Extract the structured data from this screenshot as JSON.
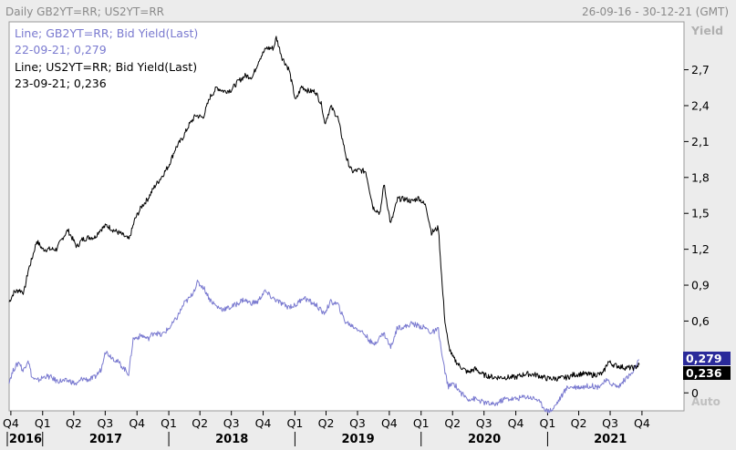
{
  "header": {
    "left_label": "Daily GB2YT=RR; US2YT=RR",
    "right_label": "26-09-16 - 30-12-21 (GMT)"
  },
  "legend": [
    {
      "line1": "Line; GB2YT=RR; Bid Yield(Last)",
      "line2": "22-09-21; 0,279",
      "color": "#7a7ad0"
    },
    {
      "line1": "Line; US2YT=RR; Bid Yield(Last)",
      "line2": "23-09-21; 0,236",
      "color": "#000000"
    }
  ],
  "axis_title": "Yield",
  "auto_label": "Auto",
  "last_value_tags": [
    {
      "label": "0,279",
      "bg": "#2a2a9a",
      "fg": "#ffffff"
    },
    {
      "label": "0,236",
      "bg": "#000000",
      "fg": "#ffffff"
    }
  ],
  "chart_data": {
    "type": "line",
    "title": "",
    "xlabel": "",
    "ylabel": "Yield",
    "ylim": [
      -0.15,
      3.1
    ],
    "xlim": [
      "2016-09-26",
      "2021-12-30"
    ],
    "y_ticks": [
      {
        "value": 0,
        "label": "0"
      },
      {
        "value": 0.6,
        "label": "0,6"
      },
      {
        "value": 0.9,
        "label": "0,9"
      },
      {
        "value": 1.2,
        "label": "1,2"
      },
      {
        "value": 1.5,
        "label": "1,5"
      },
      {
        "value": 1.8,
        "label": "1,8"
      },
      {
        "value": 2.1,
        "label": "2,1"
      },
      {
        "value": 2.4,
        "label": "2,4"
      },
      {
        "value": 2.7,
        "label": "2,7"
      }
    ],
    "quarter_ticks": [
      {
        "date": "2016-10-01",
        "label": "Q4"
      },
      {
        "date": "2017-01-01",
        "label": "Q1"
      },
      {
        "date": "2017-04-01",
        "label": "Q2"
      },
      {
        "date": "2017-07-01",
        "label": "Q3"
      },
      {
        "date": "2017-10-01",
        "label": "Q4"
      },
      {
        "date": "2018-01-01",
        "label": "Q1"
      },
      {
        "date": "2018-04-01",
        "label": "Q2"
      },
      {
        "date": "2018-07-01",
        "label": "Q3"
      },
      {
        "date": "2018-10-01",
        "label": "Q4"
      },
      {
        "date": "2019-01-01",
        "label": "Q1"
      },
      {
        "date": "2019-04-01",
        "label": "Q2"
      },
      {
        "date": "2019-07-01",
        "label": "Q3"
      },
      {
        "date": "2019-10-01",
        "label": "Q4"
      },
      {
        "date": "2020-01-01",
        "label": "Q1"
      },
      {
        "date": "2020-04-01",
        "label": "Q2"
      },
      {
        "date": "2020-07-01",
        "label": "Q3"
      },
      {
        "date": "2020-10-01",
        "label": "Q4"
      },
      {
        "date": "2021-01-01",
        "label": "Q1"
      },
      {
        "date": "2021-04-01",
        "label": "Q2"
      },
      {
        "date": "2021-07-01",
        "label": "Q3"
      },
      {
        "date": "2021-10-01",
        "label": "Q4"
      }
    ],
    "year_labels": [
      {
        "label": "2016",
        "start": "2016-09-26",
        "end": "2017-01-01"
      },
      {
        "label": "2017",
        "start": "2017-01-01",
        "end": "2018-01-01"
      },
      {
        "label": "2018",
        "start": "2018-01-01",
        "end": "2019-01-01"
      },
      {
        "label": "2019",
        "start": "2019-01-01",
        "end": "2020-01-01"
      },
      {
        "label": "2020",
        "start": "2020-01-01",
        "end": "2021-01-01"
      },
      {
        "label": "2021",
        "start": "2021-01-01",
        "end": "2021-12-30"
      }
    ],
    "series": [
      {
        "name": "US2YT=RR",
        "color": "#000000",
        "points": [
          [
            "2016-09-26",
            0.76
          ],
          [
            "2016-10-10",
            0.84
          ],
          [
            "2016-10-25",
            0.86
          ],
          [
            "2016-11-08",
            0.84
          ],
          [
            "2016-11-20",
            1.02
          ],
          [
            "2016-12-01",
            1.12
          ],
          [
            "2016-12-15",
            1.27
          ],
          [
            "2017-01-01",
            1.2
          ],
          [
            "2017-01-20",
            1.2
          ],
          [
            "2017-02-10",
            1.2
          ],
          [
            "2017-03-01",
            1.3
          ],
          [
            "2017-03-15",
            1.36
          ],
          [
            "2017-04-10",
            1.22
          ],
          [
            "2017-04-25",
            1.28
          ],
          [
            "2017-05-15",
            1.3
          ],
          [
            "2017-06-01",
            1.3
          ],
          [
            "2017-06-15",
            1.36
          ],
          [
            "2017-07-05",
            1.4
          ],
          [
            "2017-07-25",
            1.36
          ],
          [
            "2017-08-15",
            1.33
          ],
          [
            "2017-09-08",
            1.28
          ],
          [
            "2017-09-25",
            1.45
          ],
          [
            "2017-10-15",
            1.56
          ],
          [
            "2017-11-01",
            1.62
          ],
          [
            "2017-11-20",
            1.72
          ],
          [
            "2017-12-10",
            1.8
          ],
          [
            "2018-01-01",
            1.9
          ],
          [
            "2018-01-20",
            2.04
          ],
          [
            "2018-02-10",
            2.13
          ],
          [
            "2018-03-01",
            2.24
          ],
          [
            "2018-03-20",
            2.32
          ],
          [
            "2018-04-10",
            2.3
          ],
          [
            "2018-04-30",
            2.47
          ],
          [
            "2018-05-20",
            2.55
          ],
          [
            "2018-06-10",
            2.52
          ],
          [
            "2018-06-30",
            2.53
          ],
          [
            "2018-07-20",
            2.6
          ],
          [
            "2018-08-10",
            2.65
          ],
          [
            "2018-08-31",
            2.64
          ],
          [
            "2018-09-20",
            2.79
          ],
          [
            "2018-10-10",
            2.88
          ],
          [
            "2018-10-31",
            2.88
          ],
          [
            "2018-11-08",
            2.97
          ],
          [
            "2018-11-25",
            2.8
          ],
          [
            "2018-12-15",
            2.7
          ],
          [
            "2019-01-03",
            2.44
          ],
          [
            "2019-01-20",
            2.56
          ],
          [
            "2019-02-10",
            2.52
          ],
          [
            "2019-03-01",
            2.52
          ],
          [
            "2019-03-20",
            2.4
          ],
          [
            "2019-03-28",
            2.25
          ],
          [
            "2019-04-15",
            2.39
          ],
          [
            "2019-05-05",
            2.3
          ],
          [
            "2019-05-31",
            1.95
          ],
          [
            "2019-06-15",
            1.85
          ],
          [
            "2019-07-05",
            1.86
          ],
          [
            "2019-07-25",
            1.85
          ],
          [
            "2019-08-15",
            1.55
          ],
          [
            "2019-09-05",
            1.5
          ],
          [
            "2019-09-15",
            1.75
          ],
          [
            "2019-10-05",
            1.41
          ],
          [
            "2019-10-25",
            1.62
          ],
          [
            "2019-11-15",
            1.62
          ],
          [
            "2019-12-05",
            1.6
          ],
          [
            "2019-12-25",
            1.63
          ],
          [
            "2020-01-15",
            1.56
          ],
          [
            "2020-01-31",
            1.34
          ],
          [
            "2020-02-20",
            1.38
          ],
          [
            "2020-03-02",
            0.9
          ],
          [
            "2020-03-10",
            0.6
          ],
          [
            "2020-03-20",
            0.4
          ],
          [
            "2020-04-01",
            0.3
          ],
          [
            "2020-04-20",
            0.23
          ],
          [
            "2020-05-15",
            0.17
          ],
          [
            "2020-06-05",
            0.2
          ],
          [
            "2020-06-30",
            0.15
          ],
          [
            "2020-07-30",
            0.13
          ],
          [
            "2020-08-30",
            0.13
          ],
          [
            "2020-09-30",
            0.13
          ],
          [
            "2020-10-30",
            0.16
          ],
          [
            "2020-11-30",
            0.15
          ],
          [
            "2020-12-30",
            0.12
          ],
          [
            "2021-01-30",
            0.12
          ],
          [
            "2021-02-28",
            0.13
          ],
          [
            "2021-03-15",
            0.15
          ],
          [
            "2021-04-10",
            0.16
          ],
          [
            "2021-05-10",
            0.15
          ],
          [
            "2021-06-10",
            0.16
          ],
          [
            "2021-06-25",
            0.26
          ],
          [
            "2021-07-15",
            0.23
          ],
          [
            "2021-08-15",
            0.21
          ],
          [
            "2021-09-10",
            0.21
          ],
          [
            "2021-09-23",
            0.236
          ]
        ]
      },
      {
        "name": "GB2YT=RR",
        "color": "#7a7ad0",
        "points": [
          [
            "2016-09-26",
            0.1
          ],
          [
            "2016-10-10",
            0.2
          ],
          [
            "2016-10-25",
            0.26
          ],
          [
            "2016-11-05",
            0.18
          ],
          [
            "2016-11-20",
            0.28
          ],
          [
            "2016-12-01",
            0.13
          ],
          [
            "2016-12-15",
            0.1
          ],
          [
            "2017-01-10",
            0.14
          ],
          [
            "2017-01-25",
            0.13
          ],
          [
            "2017-02-10",
            0.1
          ],
          [
            "2017-03-01",
            0.1
          ],
          [
            "2017-03-20",
            0.1
          ],
          [
            "2017-04-10",
            0.07
          ],
          [
            "2017-04-25",
            0.12
          ],
          [
            "2017-05-15",
            0.11
          ],
          [
            "2017-06-01",
            0.13
          ],
          [
            "2017-06-20",
            0.2
          ],
          [
            "2017-06-30",
            0.35
          ],
          [
            "2017-07-20",
            0.3
          ],
          [
            "2017-08-10",
            0.25
          ],
          [
            "2017-09-07",
            0.16
          ],
          [
            "2017-09-20",
            0.45
          ],
          [
            "2017-10-15",
            0.48
          ],
          [
            "2017-11-02",
            0.45
          ],
          [
            "2017-11-20",
            0.51
          ],
          [
            "2017-12-10",
            0.48
          ],
          [
            "2018-01-05",
            0.55
          ],
          [
            "2018-01-25",
            0.63
          ],
          [
            "2018-02-15",
            0.75
          ],
          [
            "2018-03-05",
            0.8
          ],
          [
            "2018-03-25",
            0.92
          ],
          [
            "2018-04-12",
            0.88
          ],
          [
            "2018-04-30",
            0.78
          ],
          [
            "2018-05-20",
            0.72
          ],
          [
            "2018-06-05",
            0.7
          ],
          [
            "2018-06-25",
            0.71
          ],
          [
            "2018-07-15",
            0.74
          ],
          [
            "2018-08-05",
            0.78
          ],
          [
            "2018-08-25",
            0.75
          ],
          [
            "2018-09-15",
            0.76
          ],
          [
            "2018-10-05",
            0.85
          ],
          [
            "2018-10-25",
            0.8
          ],
          [
            "2018-11-15",
            0.76
          ],
          [
            "2018-12-10",
            0.72
          ],
          [
            "2019-01-03",
            0.73
          ],
          [
            "2019-01-25",
            0.8
          ],
          [
            "2019-02-15",
            0.76
          ],
          [
            "2019-03-05",
            0.73
          ],
          [
            "2019-03-25",
            0.66
          ],
          [
            "2019-04-15",
            0.76
          ],
          [
            "2019-05-05",
            0.74
          ],
          [
            "2019-05-25",
            0.6
          ],
          [
            "2019-06-15",
            0.56
          ],
          [
            "2019-07-05",
            0.53
          ],
          [
            "2019-07-25",
            0.48
          ],
          [
            "2019-08-15",
            0.4
          ],
          [
            "2019-08-30",
            0.45
          ],
          [
            "2019-09-15",
            0.5
          ],
          [
            "2019-10-05",
            0.38
          ],
          [
            "2019-10-25",
            0.55
          ],
          [
            "2019-11-15",
            0.55
          ],
          [
            "2019-12-05",
            0.58
          ],
          [
            "2019-12-25",
            0.56
          ],
          [
            "2020-01-15",
            0.54
          ],
          [
            "2020-01-31",
            0.5
          ],
          [
            "2020-02-20",
            0.53
          ],
          [
            "2020-03-02",
            0.3
          ],
          [
            "2020-03-12",
            0.15
          ],
          [
            "2020-03-20",
            0.05
          ],
          [
            "2020-04-05",
            0.08
          ],
          [
            "2020-04-25",
            0.0
          ],
          [
            "2020-05-15",
            -0.05
          ],
          [
            "2020-06-05",
            -0.05
          ],
          [
            "2020-06-30",
            -0.08
          ],
          [
            "2020-07-30",
            -0.1
          ],
          [
            "2020-08-30",
            -0.05
          ],
          [
            "2020-09-30",
            -0.05
          ],
          [
            "2020-10-30",
            -0.03
          ],
          [
            "2020-11-30",
            -0.05
          ],
          [
            "2020-12-30",
            -0.15
          ],
          [
            "2021-01-15",
            -0.14
          ],
          [
            "2021-02-05",
            -0.05
          ],
          [
            "2021-02-28",
            0.05
          ],
          [
            "2021-03-20",
            0.05
          ],
          [
            "2021-04-10",
            0.05
          ],
          [
            "2021-05-05",
            0.06
          ],
          [
            "2021-05-25",
            0.05
          ],
          [
            "2021-06-20",
            0.1
          ],
          [
            "2021-07-10",
            0.07
          ],
          [
            "2021-07-25",
            0.05
          ],
          [
            "2021-08-15",
            0.12
          ],
          [
            "2021-09-05",
            0.17
          ],
          [
            "2021-09-22",
            0.279
          ]
        ]
      }
    ]
  }
}
